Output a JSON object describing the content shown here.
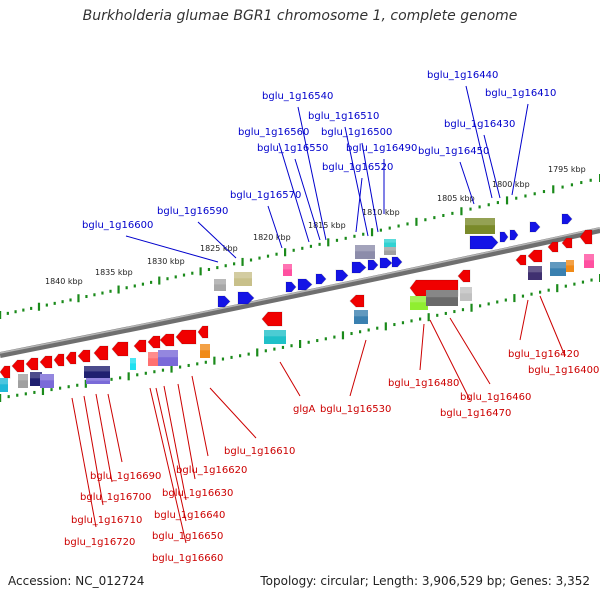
{
  "title": "Burkholderia glumae BGR1 chromosome 1, complete genome",
  "footer": {
    "accession": "Accession: NC_012724",
    "topology": "Topology: circular; Length: 3,906,529 bp; Genes: 3,352"
  },
  "colors": {
    "backbone": "#777777",
    "tick_dots": "#1a8a1a",
    "forward_label": "#0000cc",
    "reverse_label": "#cc0000"
  },
  "scale_labels": [
    "1795 kbp",
    "1800 kbp",
    "1805 kbp",
    "1810 kbp",
    "1815 kbp",
    "1820 kbp",
    "1825 kbp",
    "1830 kbp",
    "1835 kbp",
    "1840 kbp"
  ],
  "forward_genes": [
    "bglu_1g16440",
    "bglu_1g16410",
    "bglu_1g16540",
    "bglu_1g16510",
    "bglu_1g16430",
    "bglu_1g16560",
    "bglu_1g16500",
    "bglu_1g16550",
    "bglu_1g16490",
    "bglu_1g16450",
    "bglu_1g16520",
    "bglu_1g16570",
    "bglu_1g16590",
    "bglu_1g16600"
  ],
  "reverse_genes": [
    "bglu_1g16420",
    "bglu_1g16400",
    "bglu_1g16480",
    "bglu_1g16460",
    "bglu_1g16470",
    "bglu_1g16530",
    "glgA",
    "bglu_1g16610",
    "bglu_1g16620",
    "bglu_1g16690",
    "bglu_1g16630",
    "bglu_1g16700",
    "bglu_1g16640",
    "bglu_1g16710",
    "bglu_1g16650",
    "bglu_1g16720",
    "bglu_1g16660"
  ]
}
